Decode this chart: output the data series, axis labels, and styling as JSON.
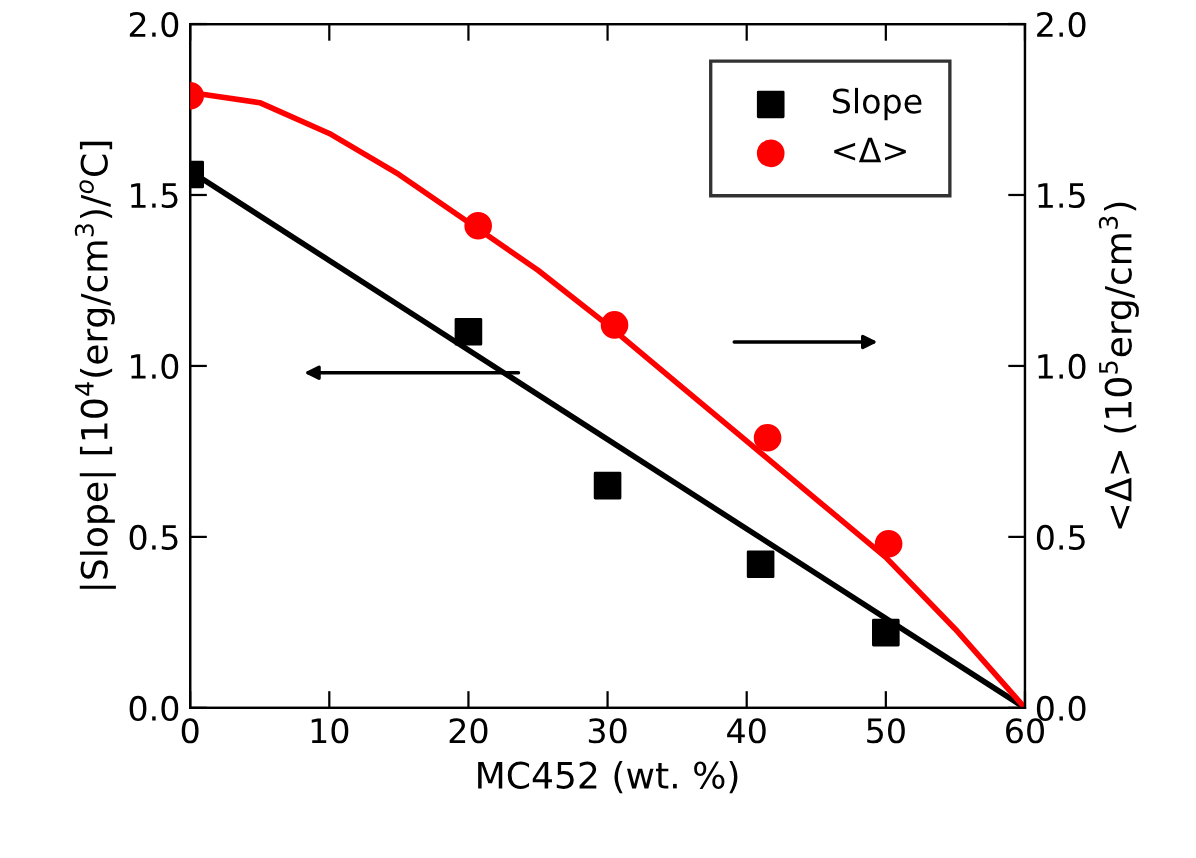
{
  "chart_data": {
    "type": "scatter",
    "xlabel": "MC452 (wt. %)",
    "ylabel": "|Slope| [10$^{4}$(erg/cm$^{3}$)/$^{o}$C]",
    "y2label": "<Δ> (10$^{5}$erg/cm$^{3}$)",
    "xlim": [
      0,
      60
    ],
    "xticks": [
      0,
      10,
      20,
      30,
      40,
      50,
      60
    ],
    "ylim": [
      0,
      2
    ],
    "yticks": [
      {
        "value": 0,
        "label": "0.0"
      },
      {
        "value": 0.5,
        "label": "0.5"
      },
      {
        "value": 1,
        "label": "1.0"
      },
      {
        "value": 1.5,
        "label": "1.5"
      },
      {
        "value": 2,
        "label": "2.0"
      }
    ],
    "y2lim": [
      0,
      2
    ],
    "y2ticks": [
      {
        "value": 0,
        "label": "0.0"
      },
      {
        "value": 0.5,
        "label": "0.5"
      },
      {
        "value": 1,
        "label": "1.0"
      },
      {
        "value": 1.5,
        "label": "1.5"
      },
      {
        "value": 2,
        "label": "2.0"
      }
    ],
    "grid": false,
    "legend": "top right",
    "series": [
      {
        "name": "Slope",
        "color": "#000000",
        "marker": "square",
        "x": [
          0,
          20,
          30,
          41,
          50
        ],
        "values": [
          1.56,
          1.1,
          0.65,
          0.42,
          0.22
        ]
      },
      {
        "type": "scatter",
        "name": "<Δ>",
        "color": "#ff0000",
        "marker": "circle",
        "axis": "y2",
        "x": [
          0,
          20.7,
          30.5,
          41.5,
          50.2
        ],
        "values": [
          1.79,
          1.41,
          1.12,
          0.79,
          0.48
        ]
      },
      {
        "type": "line",
        "color": "#000000",
        "marker": "none",
        "x": [
          0,
          60
        ],
        "values": [
          1.57,
          0
        ]
      },
      {
        "type": "line",
        "color": "#ff0000",
        "marker": "none",
        "axis": "y2",
        "x": [
          0,
          5,
          10,
          15,
          20,
          25,
          30,
          35,
          40,
          45,
          50,
          55,
          60
        ],
        "values": [
          1.8,
          1.77,
          1.68,
          1.56,
          1.42,
          1.28,
          1.12,
          0.95,
          0.78,
          0.61,
          0.44,
          0.23,
          0
        ]
      }
    ]
  }
}
